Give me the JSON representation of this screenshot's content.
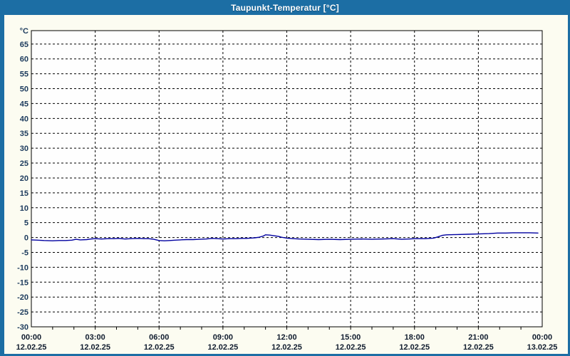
{
  "window": {
    "title": "Taupunkt-Temperatur [°C]"
  },
  "chart_data": {
    "type": "line",
    "title": "Taupunkt-Temperatur [°C]",
    "xlabel": "",
    "ylabel": "°C",
    "grid": "dashed",
    "legend": "none",
    "ylim": [
      -30,
      69.5
    ],
    "y_ticks": [
      65,
      60,
      55,
      50,
      45,
      40,
      35,
      30,
      25,
      20,
      15,
      10,
      5,
      0,
      -5,
      -10,
      -15,
      -20,
      -25,
      -30
    ],
    "x_hours": [
      0,
      24
    ],
    "x_major_step_hours": 3,
    "x_minor_step_hours": 1,
    "x_ticks": [
      {
        "time": "00:00",
        "date": "12.02.25"
      },
      {
        "time": "03:00",
        "date": "12.02.25"
      },
      {
        "time": "06:00",
        "date": "12.02.25"
      },
      {
        "time": "09:00",
        "date": "12.02.25"
      },
      {
        "time": "12:00",
        "date": "12.02.25"
      },
      {
        "time": "15:00",
        "date": "12.02.25"
      },
      {
        "time": "18:00",
        "date": "12.02.25"
      },
      {
        "time": "21:00",
        "date": "12.02.25"
      },
      {
        "time": "00:00",
        "date": "13.02.25"
      }
    ],
    "colors": {
      "titlebar": "#1c6ea4",
      "panel_bg": "#fcfcf1",
      "plot_bg": "#fefefe",
      "grid": "#000000",
      "frame": "#000000",
      "y_label": "#1b3a5c",
      "x_label": "#101c2e",
      "line": "#0000a0",
      "title_text": "#ffffff"
    },
    "series": [
      {
        "name": "Taupunkt-Temperatur",
        "color": "#0000a0",
        "points": [
          [
            0.0,
            -0.8
          ],
          [
            0.3,
            -0.9
          ],
          [
            0.6,
            -1.0
          ],
          [
            1.0,
            -1.1
          ],
          [
            1.3,
            -1.0
          ],
          [
            1.6,
            -1.0
          ],
          [
            1.9,
            -0.9
          ],
          [
            2.1,
            -0.6
          ],
          [
            2.3,
            -0.8
          ],
          [
            2.6,
            -0.7
          ],
          [
            2.8,
            -0.5
          ],
          [
            3.0,
            -0.4
          ],
          [
            3.3,
            -0.5
          ],
          [
            3.6,
            -0.4
          ],
          [
            3.9,
            -0.4
          ],
          [
            4.1,
            -0.3
          ],
          [
            4.4,
            -0.5
          ],
          [
            4.7,
            -0.4
          ],
          [
            5.0,
            -0.3
          ],
          [
            5.3,
            -0.4
          ],
          [
            5.5,
            -0.4
          ],
          [
            5.75,
            -0.6
          ],
          [
            6.0,
            -1.0
          ],
          [
            6.25,
            -1.1
          ],
          [
            6.5,
            -1.0
          ],
          [
            6.75,
            -0.9
          ],
          [
            7.0,
            -0.8
          ],
          [
            7.3,
            -0.7
          ],
          [
            7.6,
            -0.7
          ],
          [
            7.9,
            -0.6
          ],
          [
            8.2,
            -0.5
          ],
          [
            8.5,
            -0.3
          ],
          [
            8.75,
            -0.4
          ],
          [
            9.0,
            -0.5
          ],
          [
            9.3,
            -0.4
          ],
          [
            9.6,
            -0.4
          ],
          [
            9.9,
            -0.3
          ],
          [
            10.1,
            -0.3
          ],
          [
            10.3,
            -0.2
          ],
          [
            10.5,
            -0.1
          ],
          [
            10.7,
            0.1
          ],
          [
            10.9,
            0.5
          ],
          [
            11.0,
            0.9
          ],
          [
            11.2,
            0.8
          ],
          [
            11.4,
            0.6
          ],
          [
            11.6,
            0.4
          ],
          [
            11.75,
            0.1
          ],
          [
            12.0,
            -0.2
          ],
          [
            12.3,
            -0.4
          ],
          [
            12.6,
            -0.5
          ],
          [
            13.0,
            -0.6
          ],
          [
            13.5,
            -0.7
          ],
          [
            14.0,
            -0.6
          ],
          [
            14.5,
            -0.7
          ],
          [
            15.0,
            -0.6
          ],
          [
            15.5,
            -0.5
          ],
          [
            16.0,
            -0.6
          ],
          [
            16.5,
            -0.5
          ],
          [
            17.0,
            -0.4
          ],
          [
            17.4,
            -0.6
          ],
          [
            17.75,
            -0.5
          ],
          [
            18.0,
            -0.4
          ],
          [
            18.5,
            -0.4
          ],
          [
            18.9,
            -0.2
          ],
          [
            19.1,
            0.2
          ],
          [
            19.3,
            0.7
          ],
          [
            19.5,
            0.9
          ],
          [
            20.0,
            1.0
          ],
          [
            20.5,
            1.1
          ],
          [
            21.0,
            1.2
          ],
          [
            21.5,
            1.3
          ],
          [
            21.9,
            1.5
          ],
          [
            22.3,
            1.5
          ],
          [
            22.6,
            1.6
          ],
          [
            23.0,
            1.6
          ],
          [
            23.4,
            1.6
          ],
          [
            23.8,
            1.5
          ]
        ]
      }
    ]
  }
}
